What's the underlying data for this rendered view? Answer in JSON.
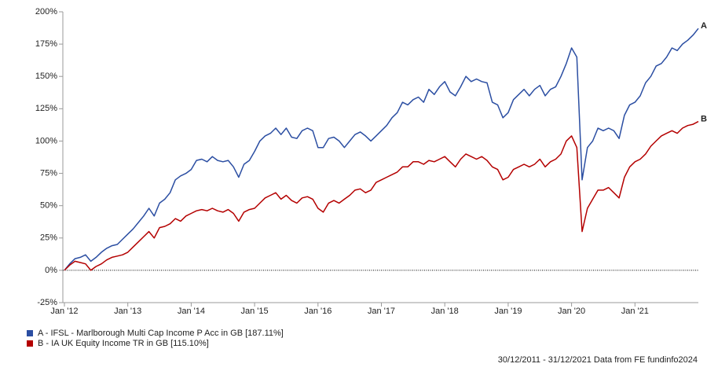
{
  "chart_data": {
    "type": "line",
    "x": [
      "2012-01",
      "2012-02",
      "2012-03",
      "2012-04",
      "2012-05",
      "2012-06",
      "2012-07",
      "2012-08",
      "2012-09",
      "2012-10",
      "2012-11",
      "2012-12",
      "2013-01",
      "2013-02",
      "2013-03",
      "2013-04",
      "2013-05",
      "2013-06",
      "2013-07",
      "2013-08",
      "2013-09",
      "2013-10",
      "2013-11",
      "2013-12",
      "2014-01",
      "2014-02",
      "2014-03",
      "2014-04",
      "2014-05",
      "2014-06",
      "2014-07",
      "2014-08",
      "2014-09",
      "2014-10",
      "2014-11",
      "2014-12",
      "2015-01",
      "2015-02",
      "2015-03",
      "2015-04",
      "2015-05",
      "2015-06",
      "2015-07",
      "2015-08",
      "2015-09",
      "2015-10",
      "2015-11",
      "2015-12",
      "2016-01",
      "2016-02",
      "2016-03",
      "2016-04",
      "2016-05",
      "2016-06",
      "2016-07",
      "2016-08",
      "2016-09",
      "2016-10",
      "2016-11",
      "2016-12",
      "2017-01",
      "2017-02",
      "2017-03",
      "2017-04",
      "2017-05",
      "2017-06",
      "2017-07",
      "2017-08",
      "2017-09",
      "2017-10",
      "2017-11",
      "2017-12",
      "2018-01",
      "2018-02",
      "2018-03",
      "2018-04",
      "2018-05",
      "2018-06",
      "2018-07",
      "2018-08",
      "2018-09",
      "2018-10",
      "2018-11",
      "2018-12",
      "2019-01",
      "2019-02",
      "2019-03",
      "2019-04",
      "2019-05",
      "2019-06",
      "2019-07",
      "2019-08",
      "2019-09",
      "2019-10",
      "2019-11",
      "2019-12",
      "2020-01",
      "2020-02",
      "2020-03",
      "2020-04",
      "2020-05",
      "2020-06",
      "2020-07",
      "2020-08",
      "2020-09",
      "2020-10",
      "2020-11",
      "2020-12",
      "2021-01",
      "2021-02",
      "2021-03",
      "2021-04",
      "2021-05",
      "2021-06",
      "2021-07",
      "2021-08",
      "2021-09",
      "2021-10",
      "2021-11",
      "2021-12",
      "2022-01"
    ],
    "series": [
      {
        "name": "A - IFSL - Marlborough Multi Cap Income P Acc in GB [187.11%]",
        "end_label": "A",
        "color": "#2b4ea2",
        "values": [
          0,
          5,
          9,
          10,
          12,
          7,
          10,
          14,
          17,
          19,
          20,
          24,
          28,
          32,
          37,
          42,
          48,
          42,
          52,
          55,
          60,
          70,
          73,
          75,
          78,
          85,
          86,
          84,
          88,
          85,
          84,
          85,
          80,
          72,
          82,
          85,
          92,
          100,
          104,
          106,
          110,
          105,
          110,
          103,
          102,
          108,
          110,
          108,
          95,
          95,
          102,
          103,
          100,
          95,
          100,
          105,
          107,
          104,
          100,
          104,
          108,
          112,
          118,
          122,
          130,
          128,
          132,
          134,
          130,
          140,
          136,
          142,
          146,
          138,
          135,
          142,
          150,
          146,
          148,
          146,
          145,
          130,
          128,
          118,
          122,
          132,
          136,
          140,
          135,
          140,
          143,
          135,
          140,
          142,
          150,
          160,
          172,
          165,
          70,
          95,
          100,
          110,
          108,
          110,
          108,
          102,
          120,
          128,
          130,
          135,
          145,
          150,
          158,
          160,
          165,
          172,
          170,
          175,
          178,
          182,
          187.11
        ]
      },
      {
        "name": "B - IA UK Equity Income TR in GB [115.10%]",
        "end_label": "B",
        "color": "#b40000",
        "values": [
          0,
          4,
          7,
          6,
          5,
          0,
          3,
          5,
          8,
          10,
          11,
          12,
          14,
          18,
          22,
          26,
          30,
          25,
          33,
          34,
          36,
          40,
          38,
          42,
          44,
          46,
          47,
          46,
          48,
          46,
          45,
          47,
          44,
          38,
          45,
          47,
          48,
          52,
          56,
          58,
          60,
          55,
          58,
          54,
          52,
          56,
          57,
          55,
          48,
          45,
          52,
          54,
          52,
          55,
          58,
          62,
          63,
          60,
          62,
          68,
          70,
          72,
          74,
          76,
          80,
          80,
          84,
          84,
          82,
          85,
          84,
          86,
          88,
          84,
          80,
          86,
          90,
          88,
          86,
          88,
          85,
          80,
          78,
          70,
          72,
          78,
          80,
          82,
          80,
          82,
          86,
          80,
          84,
          86,
          90,
          100,
          104,
          95,
          30,
          48,
          55,
          62,
          62,
          64,
          60,
          56,
          72,
          80,
          84,
          86,
          90,
          96,
          100,
          104,
          106,
          108,
          106,
          110,
          112,
          113,
          115.1
        ]
      }
    ],
    "xlim": [
      "2012-01",
      "2022-01"
    ],
    "xticks": [
      {
        "value": "2012-01",
        "label": "Jan '12"
      },
      {
        "value": "2013-01",
        "label": "Jan '13"
      },
      {
        "value": "2014-01",
        "label": "Jan '14"
      },
      {
        "value": "2015-01",
        "label": "Jan '15"
      },
      {
        "value": "2016-01",
        "label": "Jan '16"
      },
      {
        "value": "2017-01",
        "label": "Jan '17"
      },
      {
        "value": "2018-01",
        "label": "Jan '18"
      },
      {
        "value": "2019-01",
        "label": "Jan '19"
      },
      {
        "value": "2020-01",
        "label": "Jan '20"
      },
      {
        "value": "2021-01",
        "label": "Jan '21"
      }
    ],
    "ylim": [
      -25,
      200
    ],
    "yticks": [
      {
        "value": -25,
        "label": "-25%"
      },
      {
        "value": 0,
        "label": "0%"
      },
      {
        "value": 25,
        "label": "25%"
      },
      {
        "value": 50,
        "label": "50%"
      },
      {
        "value": 75,
        "label": "75%"
      },
      {
        "value": 100,
        "label": "100%"
      },
      {
        "value": 125,
        "label": "125%"
      },
      {
        "value": 150,
        "label": "150%"
      },
      {
        "value": 175,
        "label": "175%"
      },
      {
        "value": 200,
        "label": "200%"
      }
    ],
    "zero_line": true,
    "footer": "30/12/2011 - 31/12/2021 Data from FE fundinfo2024"
  }
}
